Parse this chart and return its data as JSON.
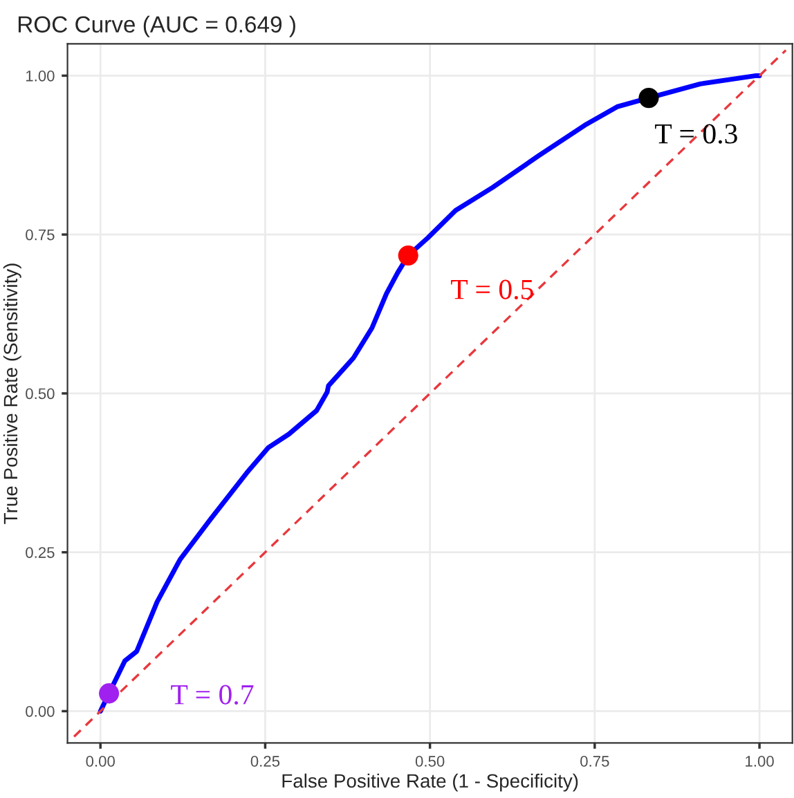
{
  "chart_data": {
    "type": "line",
    "title": "ROC Curve (AUC = 0.649 )",
    "xlabel": "False Positive Rate (1 - Specificity)",
    "ylabel": "True Positive Rate (Sensitivity)",
    "series": [
      {
        "color": "#0000ff",
        "line_style": "solid",
        "x": [
          0,
          0.013,
          0.037,
          0.055,
          0.086,
          0.121,
          0.167,
          0.222,
          0.255,
          0.286,
          0.328,
          0.344,
          0.346,
          0.384,
          0.412,
          0.434,
          0.451,
          0.467,
          0.497,
          0.539,
          0.595,
          0.665,
          0.735,
          0.784,
          0.832,
          0.91,
          0.995,
          1
        ],
        "values": [
          0,
          0.028,
          0.079,
          0.094,
          0.172,
          0.239,
          0.302,
          0.375,
          0.415,
          0.436,
          0.473,
          0.502,
          0.512,
          0.556,
          0.603,
          0.657,
          0.69,
          0.717,
          0.745,
          0.788,
          0.824,
          0.874,
          0.922,
          0.951,
          0.965,
          0.987,
          1.0,
          1
        ]
      },
      {
        "type": "line",
        "color": "#e8383d",
        "line_style": "dashed",
        "x": [
          -0.04,
          1.04
        ],
        "values": [
          -0.04,
          1.04
        ]
      },
      {
        "type": "scatter",
        "color": "#a020f0",
        "x": [
          0.013
        ],
        "values": [
          0.028
        ]
      },
      {
        "type": "scatter",
        "color": "#ff0000",
        "x": [
          0.467
        ],
        "values": [
          0.717
        ]
      },
      {
        "type": "scatter",
        "color": "#000000",
        "x": [
          0.832
        ],
        "values": [
          0.965
        ]
      }
    ],
    "annotations": [
      {
        "text": "T = 0.7",
        "x": 0.013,
        "y": 0.028
      },
      {
        "text": "T = 0.5",
        "x": 0.467,
        "y": 0.717
      },
      {
        "text": "T = 0.3",
        "x": 0.832,
        "y": 0.965
      }
    ],
    "xlim": [
      -0.05,
      1.05
    ],
    "ylim": [
      -0.05,
      1.05
    ],
    "xticks": [
      {
        "value": 0,
        "label": "0.00"
      },
      {
        "value": 0.25,
        "label": "0.25"
      },
      {
        "value": 0.5,
        "label": "0.50"
      },
      {
        "value": 0.75,
        "label": "0.75"
      },
      {
        "value": 1,
        "label": "1.00"
      }
    ],
    "yticks": [
      {
        "value": 0,
        "label": "0.00"
      },
      {
        "value": 0.25,
        "label": "0.25"
      },
      {
        "value": 0.5,
        "label": "0.50"
      },
      {
        "value": 0.75,
        "label": "0.75"
      },
      {
        "value": 1,
        "label": "1.00"
      }
    ],
    "grid": true,
    "legend": false
  }
}
